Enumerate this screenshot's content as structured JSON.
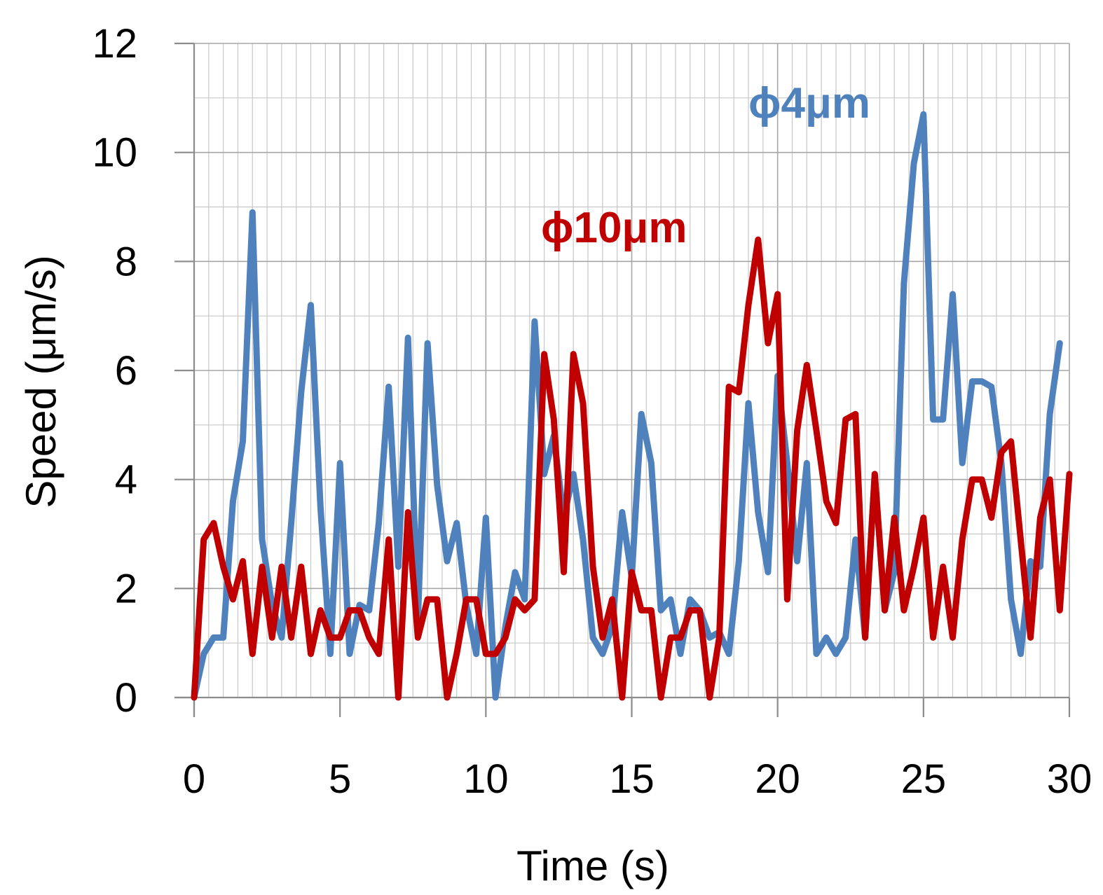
{
  "chart_data": {
    "type": "line",
    "xlabel": "Time (s)",
    "ylabel": "Speed (μm/s)",
    "xlim": [
      0,
      30
    ],
    "ylim": [
      0,
      12
    ],
    "x_ticks": [
      "0",
      "5",
      "10",
      "15",
      "20",
      "25",
      "30"
    ],
    "y_ticks": [
      "0",
      "2",
      "4",
      "6",
      "8",
      "10",
      "12"
    ],
    "grid": true,
    "colors": {
      "blue": "#4f81bd",
      "red": "#c00000"
    },
    "series": [
      {
        "name": "ϕ4μm",
        "color": "#4f81bd",
        "points": [
          [
            0,
            0
          ],
          [
            0.33,
            0.8
          ],
          [
            0.67,
            1.1
          ],
          [
            1.0,
            1.1
          ],
          [
            1.33,
            3.6
          ],
          [
            1.67,
            4.7
          ],
          [
            2.0,
            8.9
          ],
          [
            2.33,
            2.9
          ],
          [
            2.67,
            1.7
          ],
          [
            3.0,
            1.1
          ],
          [
            3.33,
            3.2
          ],
          [
            3.67,
            5.6
          ],
          [
            4.0,
            7.2
          ],
          [
            4.33,
            3.5
          ],
          [
            4.67,
            0.8
          ],
          [
            5.0,
            4.3
          ],
          [
            5.33,
            0.8
          ],
          [
            5.67,
            1.7
          ],
          [
            6.0,
            1.6
          ],
          [
            6.33,
            3.2
          ],
          [
            6.67,
            5.7
          ],
          [
            7.0,
            2.4
          ],
          [
            7.33,
            6.6
          ],
          [
            7.67,
            1.4
          ],
          [
            8.0,
            6.5
          ],
          [
            8.33,
            3.9
          ],
          [
            8.67,
            2.5
          ],
          [
            9.0,
            3.2
          ],
          [
            9.33,
            1.7
          ],
          [
            9.67,
            0.8
          ],
          [
            10.0,
            3.3
          ],
          [
            10.33,
            0.0
          ],
          [
            10.67,
            1.3
          ],
          [
            11.0,
            2.3
          ],
          [
            11.33,
            1.8
          ],
          [
            11.67,
            6.9
          ],
          [
            12.0,
            4.1
          ],
          [
            12.33,
            4.8
          ],
          [
            12.67,
            3.3
          ],
          [
            13.0,
            4.1
          ],
          [
            13.33,
            2.9
          ],
          [
            13.67,
            1.1
          ],
          [
            14.0,
            0.8
          ],
          [
            14.33,
            1.3
          ],
          [
            14.67,
            3.4
          ],
          [
            15.0,
            2.2
          ],
          [
            15.33,
            5.2
          ],
          [
            15.67,
            4.3
          ],
          [
            16.0,
            1.6
          ],
          [
            16.33,
            1.8
          ],
          [
            16.67,
            0.8
          ],
          [
            17.0,
            1.8
          ],
          [
            17.33,
            1.6
          ],
          [
            17.67,
            1.1
          ],
          [
            18.0,
            1.2
          ],
          [
            18.33,
            0.8
          ],
          [
            18.67,
            2.5
          ],
          [
            19.0,
            5.4
          ],
          [
            19.33,
            3.4
          ],
          [
            19.67,
            2.3
          ],
          [
            20.0,
            5.9
          ],
          [
            20.33,
            4.3
          ],
          [
            20.67,
            2.5
          ],
          [
            21.0,
            4.3
          ],
          [
            21.33,
            0.8
          ],
          [
            21.67,
            1.1
          ],
          [
            22.0,
            0.8
          ],
          [
            22.33,
            1.1
          ],
          [
            22.67,
            2.9
          ],
          [
            23.0,
            1.1
          ],
          [
            23.33,
            4.1
          ],
          [
            23.67,
            1.6
          ],
          [
            24.0,
            2.3
          ],
          [
            24.33,
            7.6
          ],
          [
            24.67,
            9.8
          ],
          [
            25.0,
            10.7
          ],
          [
            25.33,
            5.1
          ],
          [
            25.67,
            5.1
          ],
          [
            26.0,
            7.4
          ],
          [
            26.33,
            4.3
          ],
          [
            26.67,
            5.8
          ],
          [
            27.0,
            5.8
          ],
          [
            27.33,
            5.7
          ],
          [
            27.67,
            4.3
          ],
          [
            28.0,
            1.8
          ],
          [
            28.33,
            0.8
          ],
          [
            28.67,
            2.5
          ],
          [
            29.0,
            2.4
          ],
          [
            29.33,
            5.2
          ],
          [
            29.67,
            6.5
          ]
        ]
      },
      {
        "name": "ϕ10μm",
        "color": "#c00000",
        "points": [
          [
            0,
            0
          ],
          [
            0.33,
            2.9
          ],
          [
            0.67,
            3.2
          ],
          [
            1.0,
            2.4
          ],
          [
            1.33,
            1.8
          ],
          [
            1.67,
            2.5
          ],
          [
            2.0,
            0.8
          ],
          [
            2.33,
            2.4
          ],
          [
            2.67,
            1.1
          ],
          [
            3.0,
            2.4
          ],
          [
            3.33,
            1.1
          ],
          [
            3.67,
            2.4
          ],
          [
            4.0,
            0.8
          ],
          [
            4.33,
            1.6
          ],
          [
            4.67,
            1.1
          ],
          [
            5.0,
            1.1
          ],
          [
            5.33,
            1.6
          ],
          [
            5.67,
            1.6
          ],
          [
            6.0,
            1.1
          ],
          [
            6.33,
            0.8
          ],
          [
            6.67,
            2.9
          ],
          [
            7.0,
            0.0
          ],
          [
            7.33,
            3.4
          ],
          [
            7.67,
            1.1
          ],
          [
            8.0,
            1.8
          ],
          [
            8.33,
            1.8
          ],
          [
            8.67,
            0.0
          ],
          [
            9.0,
            0.8
          ],
          [
            9.33,
            1.8
          ],
          [
            9.67,
            1.8
          ],
          [
            10.0,
            0.8
          ],
          [
            10.33,
            0.8
          ],
          [
            10.67,
            1.1
          ],
          [
            11.0,
            1.8
          ],
          [
            11.33,
            1.6
          ],
          [
            11.67,
            1.8
          ],
          [
            12.0,
            6.3
          ],
          [
            12.33,
            5.1
          ],
          [
            12.67,
            2.3
          ],
          [
            13.0,
            6.3
          ],
          [
            13.33,
            5.4
          ],
          [
            13.67,
            2.4
          ],
          [
            14.0,
            1.1
          ],
          [
            14.33,
            1.8
          ],
          [
            14.67,
            0.0
          ],
          [
            15.0,
            2.3
          ],
          [
            15.33,
            1.6
          ],
          [
            15.67,
            1.6
          ],
          [
            16.0,
            0.0
          ],
          [
            16.33,
            1.1
          ],
          [
            16.67,
            1.1
          ],
          [
            17.0,
            1.6
          ],
          [
            17.33,
            1.6
          ],
          [
            17.67,
            0.0
          ],
          [
            18.0,
            1.1
          ],
          [
            18.33,
            5.7
          ],
          [
            18.67,
            5.6
          ],
          [
            19.0,
            7.2
          ],
          [
            19.33,
            8.4
          ],
          [
            19.67,
            6.5
          ],
          [
            20.0,
            7.4
          ],
          [
            20.33,
            1.8
          ],
          [
            20.67,
            4.9
          ],
          [
            21.0,
            6.1
          ],
          [
            21.33,
            4.9
          ],
          [
            21.67,
            3.6
          ],
          [
            22.0,
            3.2
          ],
          [
            22.33,
            5.1
          ],
          [
            22.67,
            5.2
          ],
          [
            23.0,
            1.1
          ],
          [
            23.33,
            4.1
          ],
          [
            23.67,
            1.6
          ],
          [
            24.0,
            3.3
          ],
          [
            24.33,
            1.6
          ],
          [
            24.67,
            2.4
          ],
          [
            25.0,
            3.3
          ],
          [
            25.33,
            1.1
          ],
          [
            25.67,
            2.4
          ],
          [
            26.0,
            1.1
          ],
          [
            26.33,
            2.9
          ],
          [
            26.67,
            4.0
          ],
          [
            27.0,
            4.0
          ],
          [
            27.33,
            3.3
          ],
          [
            27.67,
            4.5
          ],
          [
            28.0,
            4.7
          ],
          [
            28.33,
            2.9
          ],
          [
            28.67,
            1.1
          ],
          [
            29.0,
            3.3
          ],
          [
            29.33,
            4.0
          ],
          [
            29.67,
            1.6
          ],
          [
            30.0,
            4.1
          ]
        ]
      }
    ]
  }
}
